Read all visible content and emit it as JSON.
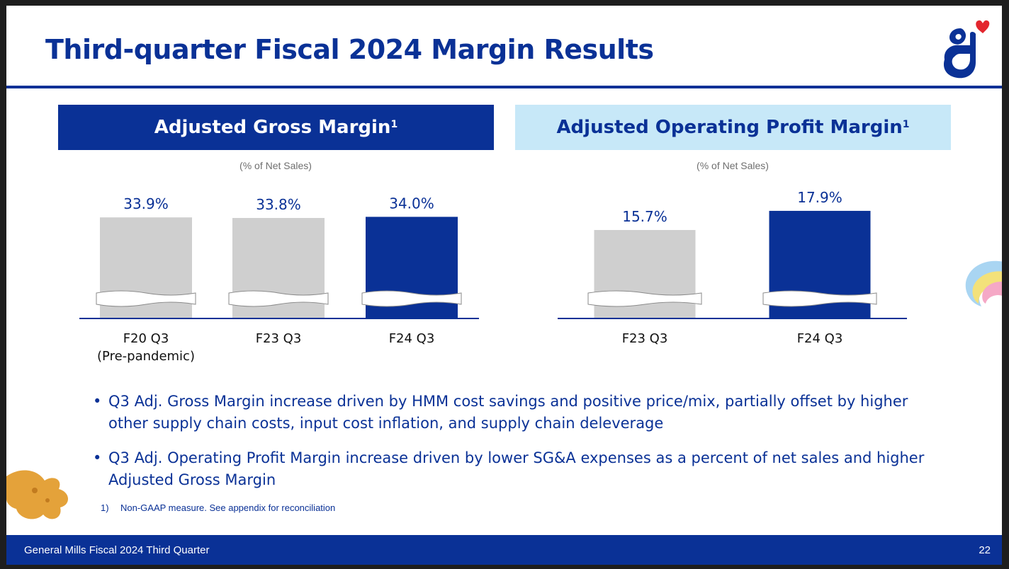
{
  "slide": {
    "title": "Third-quarter Fiscal 2024 Margin Results",
    "logo_icon": "general-mills-g-heart-logo",
    "colors": {
      "brand_blue": "#0a3196",
      "light_blue": "#c7e8f8",
      "gray_bar": "#cfcfcf"
    }
  },
  "panels": {
    "gross": {
      "title": "Adjusted Gross Margin",
      "sup": "1",
      "subtitle": "(% of Net Sales)"
    },
    "operating": {
      "title": "Adjusted Operating Profit Margin",
      "sup": "1",
      "subtitle": "(% of Net Sales)"
    }
  },
  "chart_data": [
    {
      "type": "bar",
      "title": "Adjusted Gross Margin",
      "subtitle": "(% of Net Sales)",
      "categories": [
        "F20 Q3\n(Pre-pandemic)",
        "F23 Q3",
        "F24 Q3"
      ],
      "values": [
        33.9,
        33.8,
        34.0
      ],
      "data_labels": [
        "33.9%",
        "33.8%",
        "34.0%"
      ],
      "colors": [
        "#cfcfcf",
        "#cfcfcf",
        "#0a3196"
      ],
      "axis_break": true
    },
    {
      "type": "bar",
      "title": "Adjusted Operating Profit Margin",
      "subtitle": "(% of Net Sales)",
      "categories": [
        "F23 Q3",
        "F24 Q3"
      ],
      "values": [
        15.7,
        17.9
      ],
      "data_labels": [
        "15.7%",
        "17.9%"
      ],
      "colors": [
        "#cfcfcf",
        "#0a3196"
      ],
      "axis_break": true
    }
  ],
  "bullets": [
    "Q3 Adj. Gross Margin increase driven by HMM cost savings and positive price/mix, partially offset by higher other supply chain costs, input cost inflation, and supply chain deleverage",
    "Q3 Adj. Operating Profit Margin increase driven by lower SG&A expenses as a percent of net sales and higher Adjusted Gross Margin"
  ],
  "bullet_symbol": "•",
  "footnote": {
    "number": "1)",
    "text": "Non-GAAP measure. See appendix for reconciliation"
  },
  "footer": {
    "left": "General Mills Fiscal 2024 Third Quarter",
    "page_number": "22"
  }
}
